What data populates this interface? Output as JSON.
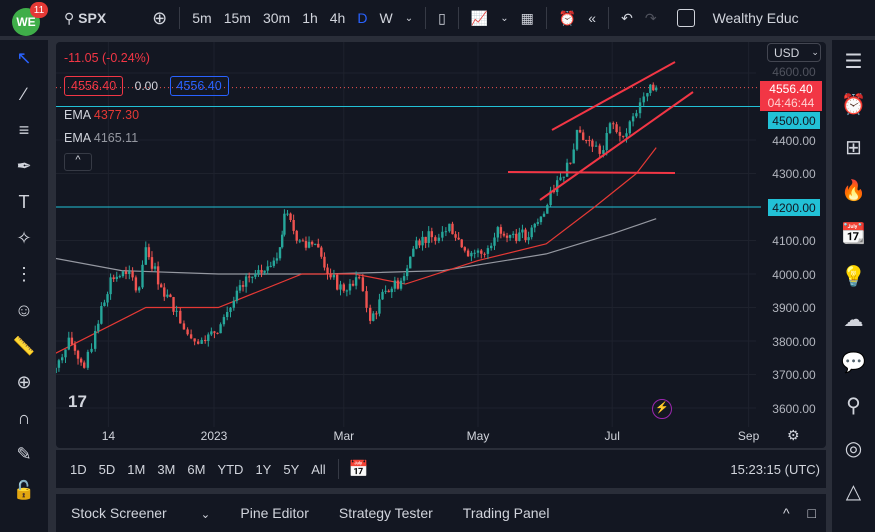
{
  "topbar": {
    "logo_badge": "11",
    "symbol": "SPX",
    "intervals": [
      "5m",
      "15m",
      "30m",
      "1h",
      "4h",
      "D",
      "W"
    ],
    "active_interval": "D",
    "layout_name": "Wealthy Educ"
  },
  "legend": {
    "change": "-11.05 (-0.24%)",
    "sell": "4556.40",
    "spread": "0.00",
    "buy": "4556.40",
    "ema1_label": "EMA",
    "ema1_value": "4377.30",
    "ema2_label": "EMA",
    "ema2_value": "4165.11"
  },
  "price_axis": {
    "currency": "USD",
    "current_price": "4556.40",
    "countdown": "04:46:44",
    "ticks": [
      "4600.00",
      "4500.00",
      "4400.00",
      "4300.00",
      "4200.00",
      "4100.00",
      "4000.00",
      "3900.00",
      "3800.00",
      "3700.00",
      "3600.00"
    ],
    "highlighted": [
      "4500.00",
      "4200.00"
    ]
  },
  "time_axis": {
    "ticks": [
      "14",
      "2023",
      "Mar",
      "May",
      "Jul",
      "Sep"
    ]
  },
  "range_bar": {
    "ranges": [
      "1D",
      "5D",
      "1M",
      "3M",
      "6M",
      "YTD",
      "1Y",
      "5Y",
      "All"
    ],
    "clock": "15:23:15 (UTC)"
  },
  "bottom_panel": {
    "tabs": [
      "Stock Screener",
      "Pine Editor",
      "Strategy Tester",
      "Trading Panel"
    ]
  },
  "colors": {
    "up": "#26a69a",
    "down": "#ef5350",
    "ema_fast": "#e53935",
    "ema_slow": "#9598a1",
    "level_line": "#22c1d6",
    "drawing": "#f23645"
  },
  "chart_data": {
    "type": "candlestick",
    "symbol": "SPX",
    "timeframe": "D",
    "closes": [
      [
        "2022-10-13",
        3660
      ],
      [
        "2022-10-21",
        3720
      ],
      [
        "2022-10-27",
        3810
      ],
      [
        "2022-11-03",
        3720
      ],
      [
        "2022-11-08",
        3830
      ],
      [
        "2022-11-15",
        3990
      ],
      [
        "2022-11-22",
        4000
      ],
      [
        "2022-11-28",
        3960
      ],
      [
        "2022-12-01",
        4080
      ],
      [
        "2022-12-08",
        3960
      ],
      [
        "2022-12-15",
        3890
      ],
      [
        "2022-12-20",
        3820
      ],
      [
        "2022-12-28",
        3800
      ],
      [
        "2023-01-04",
        3850
      ],
      [
        "2023-01-10",
        3920
      ],
      [
        "2023-01-17",
        3990
      ],
      [
        "2023-01-24",
        4010
      ],
      [
        "2023-01-31",
        4080
      ],
      [
        "2023-02-02",
        4180
      ],
      [
        "2023-02-09",
        4100
      ],
      [
        "2023-02-16",
        4090
      ],
      [
        "2023-02-23",
        3990
      ],
      [
        "2023-03-01",
        3950
      ],
      [
        "2023-03-08",
        3990
      ],
      [
        "2023-03-13",
        3860
      ],
      [
        "2023-03-20",
        3950
      ],
      [
        "2023-03-27",
        3980
      ],
      [
        "2023-04-03",
        4100
      ],
      [
        "2023-04-10",
        4110
      ],
      [
        "2023-04-18",
        4150
      ],
      [
        "2023-04-25",
        4070
      ],
      [
        "2023-05-04",
        4060
      ],
      [
        "2023-05-10",
        4140
      ],
      [
        "2023-05-17",
        4120
      ],
      [
        "2023-05-24",
        4110
      ],
      [
        "2023-05-31",
        4180
      ],
      [
        "2023-06-06",
        4280
      ],
      [
        "2023-06-12",
        4330
      ],
      [
        "2023-06-15",
        4430
      ],
      [
        "2023-06-22",
        4380
      ],
      [
        "2023-06-27",
        4370
      ],
      [
        "2023-06-30",
        4450
      ],
      [
        "2023-07-06",
        4410
      ],
      [
        "2023-07-12",
        4480
      ],
      [
        "2023-07-17",
        4540
      ],
      [
        "2023-07-21",
        4556.4
      ]
    ],
    "ema_fast": [
      [
        "2022-10-20",
        3760
      ],
      [
        "2022-12-01",
        3900
      ],
      [
        "2023-01-03",
        3900
      ],
      [
        "2023-02-10",
        4000
      ],
      [
        "2023-03-06",
        4000
      ],
      [
        "2023-03-29",
        3970
      ],
      [
        "2023-05-01",
        4040
      ],
      [
        "2023-06-01",
        4090
      ],
      [
        "2023-06-23",
        4200
      ],
      [
        "2023-07-12",
        4300
      ],
      [
        "2023-07-21",
        4377.3
      ]
    ],
    "ema_slow": [
      [
        "2022-10-10",
        4060
      ],
      [
        "2022-11-20",
        4010
      ],
      [
        "2023-01-03",
        4000
      ],
      [
        "2023-02-20",
        4000
      ],
      [
        "2023-04-15",
        4010
      ],
      [
        "2023-06-01",
        4060
      ],
      [
        "2023-07-01",
        4120
      ],
      [
        "2023-07-21",
        4165.11
      ]
    ],
    "horizontal_levels": [
      4500,
      4200
    ],
    "ylim": [
      3560,
      4640
    ]
  }
}
